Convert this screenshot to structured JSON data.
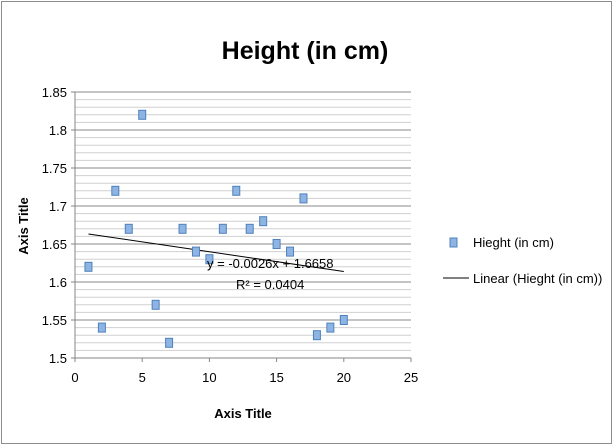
{
  "chart_data": {
    "type": "scatter",
    "title": "Height (in cm)",
    "xlabel": "Axis Title",
    "ylabel": "Axis Title",
    "xlim": [
      0,
      25
    ],
    "ylim": [
      1.5,
      1.85
    ],
    "x_ticks": [
      "0",
      "5",
      "10",
      "15",
      "20",
      "25"
    ],
    "y_ticks": [
      "1.5",
      "1.55",
      "1.6",
      "1.65",
      "1.7",
      "1.75",
      "1.8",
      "1.85"
    ],
    "minor_grid_step": 0.01,
    "grid": true,
    "legend_position": "right",
    "series": [
      {
        "name": "Hieght (in cm)",
        "color": "#8db4e2",
        "edge_color": "#4f81bd",
        "marker": "square",
        "x": [
          1,
          2,
          3,
          4,
          5,
          6,
          7,
          8,
          9,
          10,
          11,
          12,
          13,
          14,
          15,
          16,
          17,
          18,
          19,
          20
        ],
        "y": [
          1.62,
          1.54,
          1.72,
          1.67,
          1.82,
          1.57,
          1.52,
          1.67,
          1.64,
          1.63,
          1.67,
          1.72,
          1.67,
          1.68,
          1.65,
          1.64,
          1.71,
          1.53,
          1.54,
          1.55
        ]
      }
    ],
    "trendline": {
      "name": "Linear (Hieght (in cm))",
      "type": "linear",
      "slope": -0.0026,
      "intercept": 1.6658,
      "x_range": [
        1,
        20
      ],
      "color": "#000000",
      "equation_text": "y = -0.0026x + 1.6658",
      "r2_text": "R² = 0.0404"
    }
  }
}
